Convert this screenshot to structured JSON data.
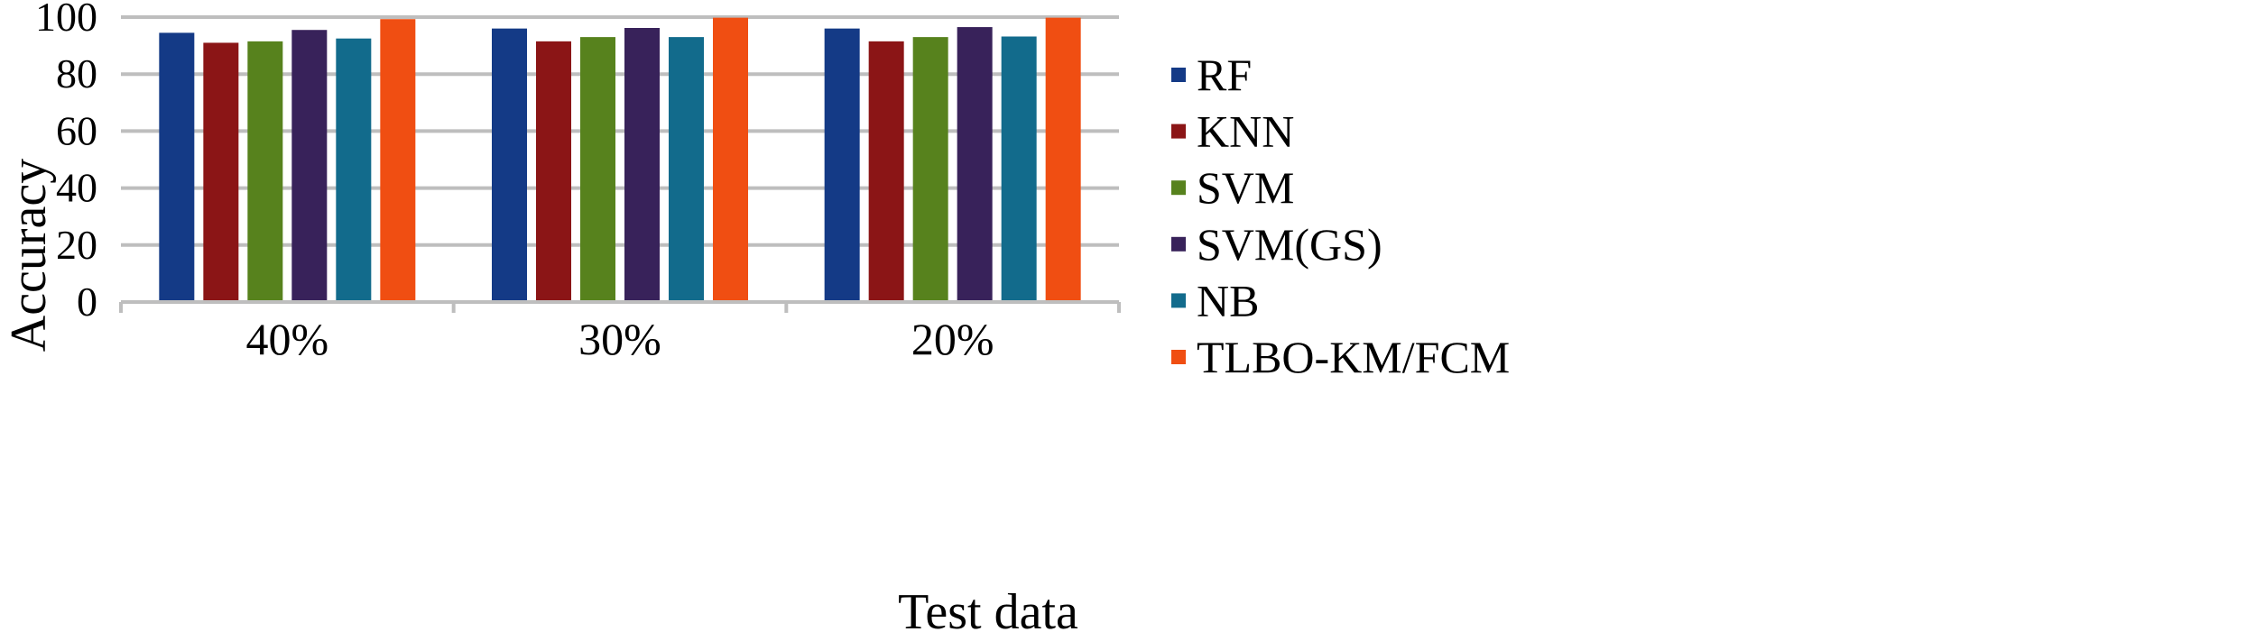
{
  "chart_data": {
    "type": "bar",
    "title": "",
    "xlabel": "Test data",
    "ylabel": "Accuracy",
    "ylim": [
      0,
      100
    ],
    "yticks": [
      0,
      20,
      40,
      60,
      80,
      100
    ],
    "grid": true,
    "legend_position": "right",
    "categories": [
      "40%",
      "30%",
      "20%"
    ],
    "series": [
      {
        "name": "RF",
        "color": "#143A86",
        "values": [
          94.5,
          96.0,
          96.0
        ]
      },
      {
        "name": "KNN",
        "color": "#8B1516",
        "values": [
          91.0,
          91.5,
          91.5
        ]
      },
      {
        "name": "SVM",
        "color": "#57821D",
        "values": [
          91.5,
          93.0,
          93.0
        ]
      },
      {
        "name": "SVM(GS)",
        "color": "#38225A",
        "values": [
          95.5,
          96.2,
          96.5
        ]
      },
      {
        "name": "NB",
        "color": "#126B8C",
        "values": [
          92.5,
          93.0,
          93.2
        ]
      },
      {
        "name": "TLBO-KM/FCM",
        "color": "#F04E12",
        "values": [
          99.3,
          99.8,
          99.8
        ]
      }
    ]
  }
}
